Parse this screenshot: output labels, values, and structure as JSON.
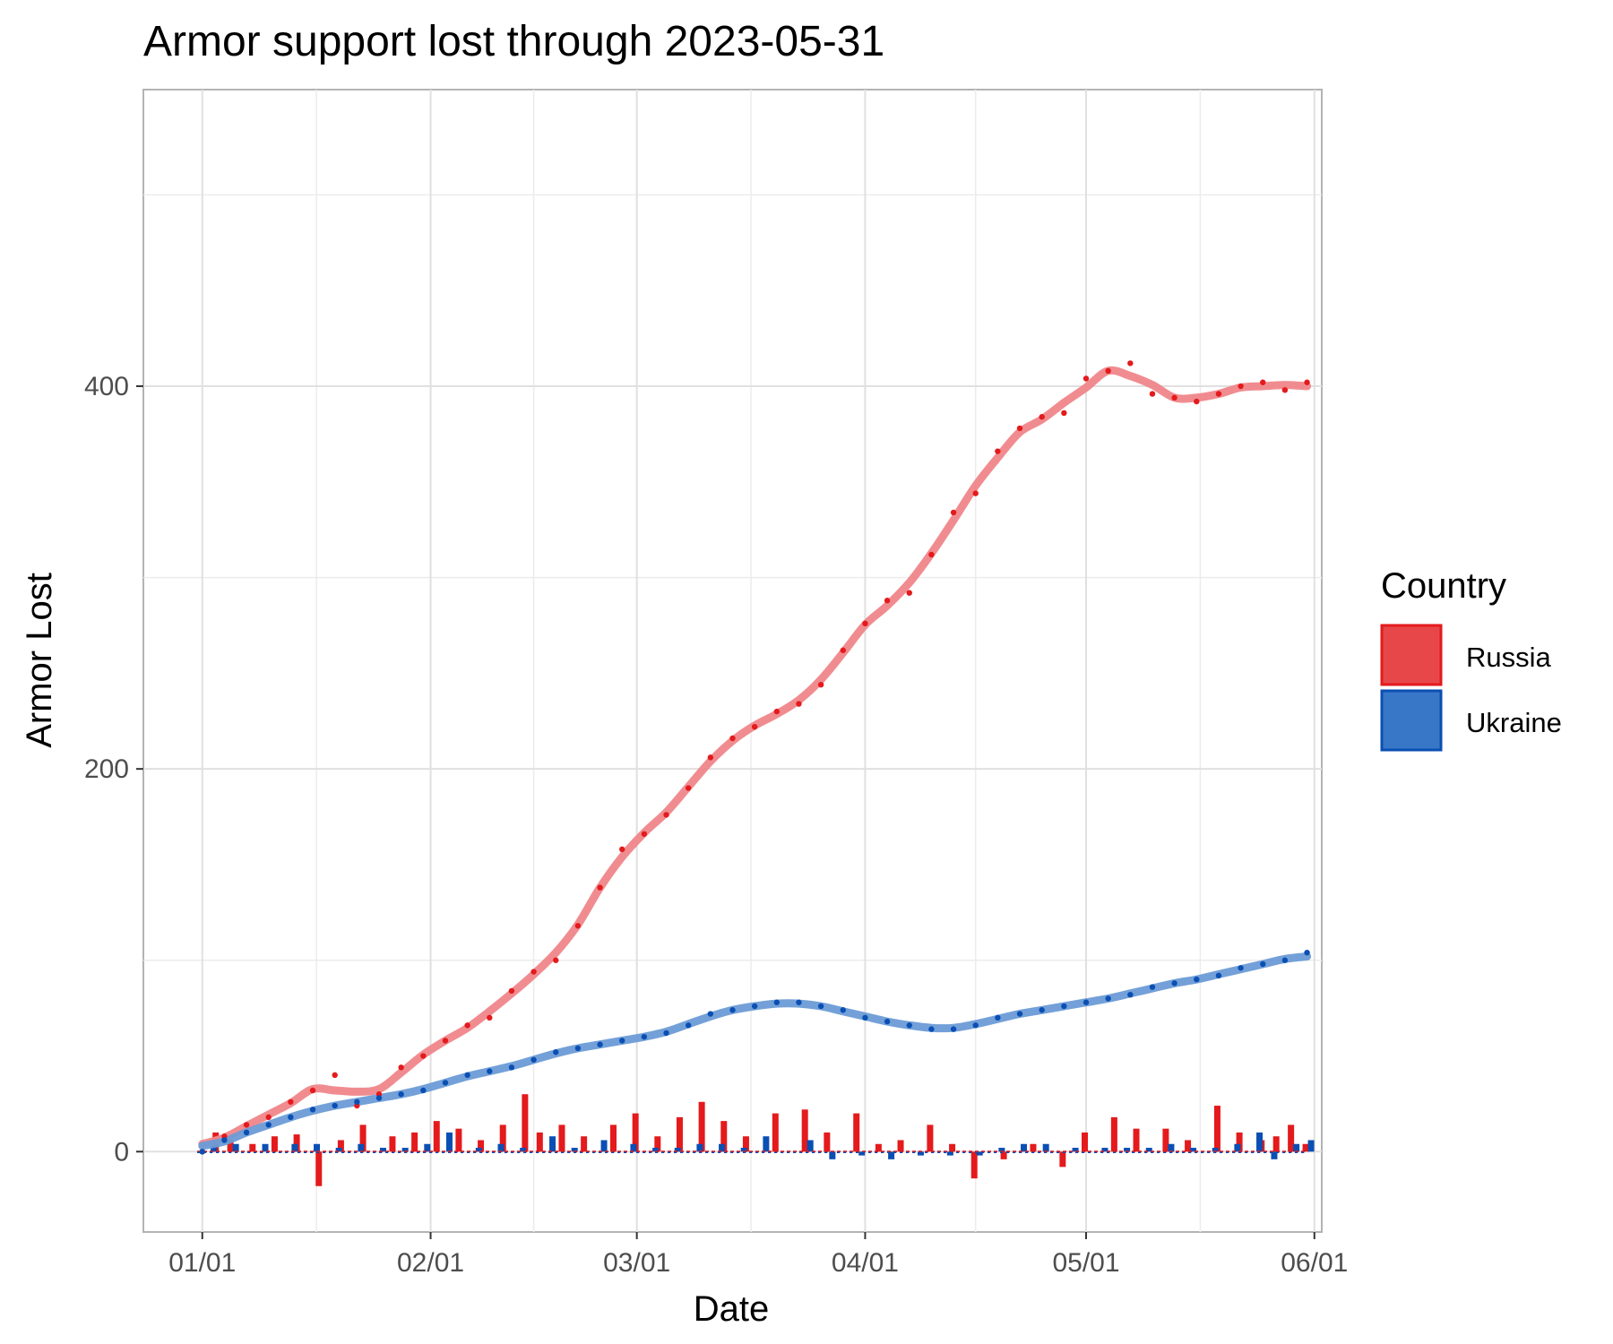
{
  "chart_data": {
    "type": "line",
    "title": "Armor support lost through 2023-05-31",
    "xlabel": "Date",
    "ylabel": "Armor Lost",
    "x_tick_labels": [
      "01/01",
      "02/01",
      "03/01",
      "04/01",
      "05/01",
      "06/01"
    ],
    "x_tick_dates": [
      "2023-01-01",
      "2023-02-01",
      "2023-03-01",
      "2023-04-01",
      "2023-05-01",
      "2023-06-01"
    ],
    "y_ticks": [
      0,
      200,
      400
    ],
    "y_tick_labels": [
      "0",
      "200",
      "400"
    ],
    "ylim": [
      -42,
      555
    ],
    "xlim": [
      "2022-12-24",
      "2023-06-02"
    ],
    "grid": true,
    "legend": {
      "title": "Country",
      "position": "right"
    },
    "series": [
      {
        "name": "Russia",
        "color": "#e41a1c",
        "fill": "#e8474a",
        "smooth_color": "#ef868a",
        "cumulative_points": [
          [
            "2023-01-01",
            0
          ],
          [
            "2023-01-04",
            8
          ],
          [
            "2023-01-07",
            14
          ],
          [
            "2023-01-10",
            18
          ],
          [
            "2023-01-13",
            26
          ],
          [
            "2023-01-16",
            32
          ],
          [
            "2023-01-19",
            40
          ],
          [
            "2023-01-22",
            24
          ],
          [
            "2023-01-25",
            30
          ],
          [
            "2023-01-28",
            44
          ],
          [
            "2023-01-31",
            50
          ],
          [
            "2023-02-03",
            58
          ],
          [
            "2023-02-06",
            66
          ],
          [
            "2023-02-09",
            70
          ],
          [
            "2023-02-12",
            84
          ],
          [
            "2023-02-15",
            94
          ],
          [
            "2023-02-18",
            100
          ],
          [
            "2023-02-21",
            118
          ],
          [
            "2023-02-24",
            138
          ],
          [
            "2023-02-27",
            158
          ],
          [
            "2023-03-02",
            166
          ],
          [
            "2023-03-05",
            176
          ],
          [
            "2023-03-08",
            190
          ],
          [
            "2023-03-11",
            206
          ],
          [
            "2023-03-14",
            216
          ],
          [
            "2023-03-17",
            222
          ],
          [
            "2023-03-20",
            230
          ],
          [
            "2023-03-23",
            234
          ],
          [
            "2023-03-26",
            244
          ],
          [
            "2023-03-29",
            262
          ],
          [
            "2023-04-01",
            276
          ],
          [
            "2023-04-04",
            288
          ],
          [
            "2023-04-07",
            292
          ],
          [
            "2023-04-10",
            312
          ],
          [
            "2023-04-13",
            334
          ],
          [
            "2023-04-16",
            344
          ],
          [
            "2023-04-19",
            366
          ],
          [
            "2023-04-22",
            378
          ],
          [
            "2023-04-25",
            384
          ],
          [
            "2023-04-28",
            386
          ],
          [
            "2023-05-01",
            404
          ],
          [
            "2023-05-04",
            408
          ],
          [
            "2023-05-07",
            412
          ],
          [
            "2023-05-10",
            396
          ],
          [
            "2023-05-13",
            394
          ],
          [
            "2023-05-16",
            392
          ],
          [
            "2023-05-19",
            396
          ],
          [
            "2023-05-22",
            400
          ],
          [
            "2023-05-25",
            402
          ],
          [
            "2023-05-28",
            398
          ],
          [
            "2023-05-31",
            402
          ]
        ],
        "daily_change": [
          [
            "2023-01-03",
            10
          ],
          [
            "2023-01-05",
            6
          ],
          [
            "2023-01-08",
            4
          ],
          [
            "2023-01-11",
            8
          ],
          [
            "2023-01-14",
            9
          ],
          [
            "2023-01-17",
            -18
          ],
          [
            "2023-01-20",
            6
          ],
          [
            "2023-01-23",
            14
          ],
          [
            "2023-01-27",
            8
          ],
          [
            "2023-01-30",
            10
          ],
          [
            "2023-02-02",
            16
          ],
          [
            "2023-02-05",
            12
          ],
          [
            "2023-02-08",
            6
          ],
          [
            "2023-02-11",
            14
          ],
          [
            "2023-02-14",
            30
          ],
          [
            "2023-02-16",
            10
          ],
          [
            "2023-02-19",
            14
          ],
          [
            "2023-02-22",
            8
          ],
          [
            "2023-02-26",
            14
          ],
          [
            "2023-03-01",
            20
          ],
          [
            "2023-03-04",
            8
          ],
          [
            "2023-03-07",
            18
          ],
          [
            "2023-03-10",
            26
          ],
          [
            "2023-03-13",
            16
          ],
          [
            "2023-03-16",
            8
          ],
          [
            "2023-03-20",
            20
          ],
          [
            "2023-03-24",
            22
          ],
          [
            "2023-03-27",
            10
          ],
          [
            "2023-03-31",
            20
          ],
          [
            "2023-04-03",
            4
          ],
          [
            "2023-04-06",
            6
          ],
          [
            "2023-04-10",
            14
          ],
          [
            "2023-04-13",
            4
          ],
          [
            "2023-04-16",
            -14
          ],
          [
            "2023-04-20",
            -4
          ],
          [
            "2023-04-24",
            4
          ],
          [
            "2023-04-28",
            -8
          ],
          [
            "2023-05-01",
            10
          ],
          [
            "2023-05-05",
            18
          ],
          [
            "2023-05-08",
            12
          ],
          [
            "2023-05-12",
            12
          ],
          [
            "2023-05-15",
            6
          ],
          [
            "2023-05-19",
            24
          ],
          [
            "2023-05-22",
            10
          ],
          [
            "2023-05-25",
            6
          ],
          [
            "2023-05-27",
            8
          ],
          [
            "2023-05-29",
            14
          ],
          [
            "2023-05-31",
            4
          ]
        ]
      },
      {
        "name": "Ukraine",
        "color": "#0a4fb3",
        "fill": "#3876c7",
        "smooth_color": "#6b9bd6",
        "cumulative_points": [
          [
            "2023-01-01",
            0
          ],
          [
            "2023-01-04",
            6
          ],
          [
            "2023-01-07",
            10
          ],
          [
            "2023-01-10",
            14
          ],
          [
            "2023-01-13",
            18
          ],
          [
            "2023-01-16",
            22
          ],
          [
            "2023-01-19",
            24
          ],
          [
            "2023-01-22",
            26
          ],
          [
            "2023-01-25",
            28
          ],
          [
            "2023-01-28",
            30
          ],
          [
            "2023-01-31",
            32
          ],
          [
            "2023-02-03",
            36
          ],
          [
            "2023-02-06",
            40
          ],
          [
            "2023-02-09",
            42
          ],
          [
            "2023-02-12",
            44
          ],
          [
            "2023-02-15",
            48
          ],
          [
            "2023-02-18",
            52
          ],
          [
            "2023-02-21",
            54
          ],
          [
            "2023-02-24",
            56
          ],
          [
            "2023-02-27",
            58
          ],
          [
            "2023-03-02",
            60
          ],
          [
            "2023-03-05",
            62
          ],
          [
            "2023-03-08",
            66
          ],
          [
            "2023-03-11",
            72
          ],
          [
            "2023-03-14",
            74
          ],
          [
            "2023-03-17",
            76
          ],
          [
            "2023-03-20",
            78
          ],
          [
            "2023-03-23",
            78
          ],
          [
            "2023-03-26",
            76
          ],
          [
            "2023-03-29",
            74
          ],
          [
            "2023-04-01",
            70
          ],
          [
            "2023-04-04",
            68
          ],
          [
            "2023-04-07",
            66
          ],
          [
            "2023-04-10",
            64
          ],
          [
            "2023-04-13",
            64
          ],
          [
            "2023-04-16",
            66
          ],
          [
            "2023-04-19",
            70
          ],
          [
            "2023-04-22",
            72
          ],
          [
            "2023-04-25",
            74
          ],
          [
            "2023-04-28",
            76
          ],
          [
            "2023-05-01",
            78
          ],
          [
            "2023-05-04",
            80
          ],
          [
            "2023-05-07",
            82
          ],
          [
            "2023-05-10",
            86
          ],
          [
            "2023-05-13",
            88
          ],
          [
            "2023-05-16",
            90
          ],
          [
            "2023-05-19",
            92
          ],
          [
            "2023-05-22",
            96
          ],
          [
            "2023-05-25",
            98
          ],
          [
            "2023-05-28",
            100
          ],
          [
            "2023-05-31",
            104
          ]
        ],
        "daily_change": [
          [
            "2023-01-02",
            6
          ],
          [
            "2023-01-05",
            4
          ],
          [
            "2023-01-09",
            4
          ],
          [
            "2023-01-13",
            4
          ],
          [
            "2023-01-16",
            4
          ],
          [
            "2023-01-19",
            2
          ],
          [
            "2023-01-22",
            4
          ],
          [
            "2023-01-25",
            2
          ],
          [
            "2023-01-28",
            2
          ],
          [
            "2023-01-31",
            4
          ],
          [
            "2023-02-03",
            10
          ],
          [
            "2023-02-07",
            2
          ],
          [
            "2023-02-10",
            4
          ],
          [
            "2023-02-13",
            2
          ],
          [
            "2023-02-17",
            8
          ],
          [
            "2023-02-20",
            2
          ],
          [
            "2023-02-24",
            6
          ],
          [
            "2023-02-28",
            4
          ],
          [
            "2023-03-03",
            2
          ],
          [
            "2023-03-06",
            2
          ],
          [
            "2023-03-09",
            4
          ],
          [
            "2023-03-12",
            4
          ],
          [
            "2023-03-15",
            2
          ],
          [
            "2023-03-18",
            8
          ],
          [
            "2023-03-24",
            6
          ],
          [
            "2023-03-27",
            -4
          ],
          [
            "2023-03-31",
            -2
          ],
          [
            "2023-04-04",
            -4
          ],
          [
            "2023-04-08",
            -2
          ],
          [
            "2023-04-12",
            -2
          ],
          [
            "2023-04-16",
            -2
          ],
          [
            "2023-04-19",
            2
          ],
          [
            "2023-04-22",
            4
          ],
          [
            "2023-04-25",
            4
          ],
          [
            "2023-04-29",
            2
          ],
          [
            "2023-05-03",
            2
          ],
          [
            "2023-05-06",
            2
          ],
          [
            "2023-05-09",
            2
          ],
          [
            "2023-05-12",
            4
          ],
          [
            "2023-05-15",
            2
          ],
          [
            "2023-05-18",
            2
          ],
          [
            "2023-05-21",
            4
          ],
          [
            "2023-05-24",
            10
          ],
          [
            "2023-05-26",
            -4
          ],
          [
            "2023-05-29",
            4
          ],
          [
            "2023-05-31",
            6
          ]
        ]
      }
    ]
  }
}
